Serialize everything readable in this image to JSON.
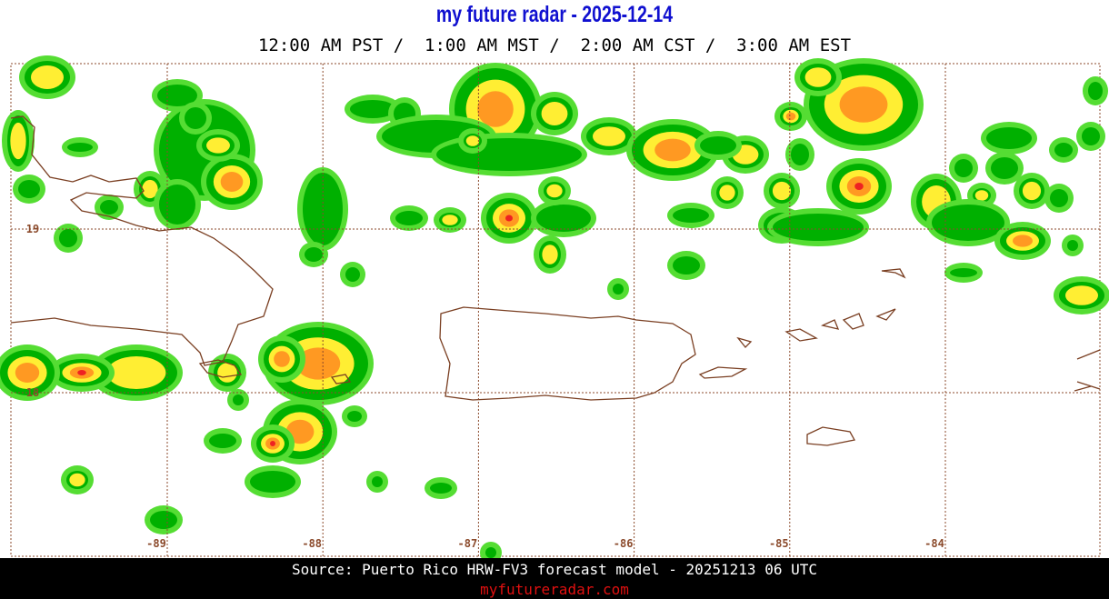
{
  "header": {
    "title": "my future radar - 2025-12-14",
    "subtitle": "12:00 AM PST /  1:00 AM MST /  2:00 AM CST /  3:00 AM EST"
  },
  "map": {
    "lon_labels": [
      -89,
      -88,
      -87,
      -86,
      -85,
      -84
    ],
    "lat_labels": [
      19,
      18
    ]
  },
  "footer": {
    "source": "Source: Puerto Rico HRW-FV3 forecast model - 20251213 06 UTC",
    "link": "myfutureradar.com"
  }
}
